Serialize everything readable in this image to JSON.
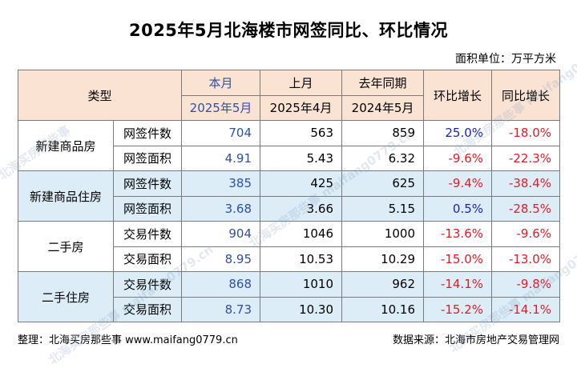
{
  "title": "2025年5月北海楼市网签同比、环比情况",
  "unit": "面积单位：万平方米",
  "header": {
    "type": "类型",
    "this_month": "本月",
    "this_month_date": "2025年5月",
    "last_month": "上月",
    "last_month_date": "2025年4月",
    "last_year": "去年同期",
    "last_year_date": "2024年5月",
    "mom": "环比增长",
    "yoy": "同比增长"
  },
  "groups": [
    {
      "category": "新建商品房",
      "rows": [
        {
          "metric": "网签件数",
          "current": "704",
          "last_month": "563",
          "last_year": "859",
          "mom": "25.0%",
          "yoy": "-18.0%"
        },
        {
          "metric": "网签面积",
          "current": "4.91",
          "last_month": "5.43",
          "last_year": "6.32",
          "mom": "-9.6%",
          "yoy": "-22.3%"
        }
      ]
    },
    {
      "category": "新建商品住房",
      "rows": [
        {
          "metric": "网签件数",
          "current": "385",
          "last_month": "425",
          "last_year": "625",
          "mom": "-9.4%",
          "yoy": "-38.4%"
        },
        {
          "metric": "网签面积",
          "current": "3.68",
          "last_month": "3.66",
          "last_year": "5.15",
          "mom": "0.5%",
          "yoy": "-28.5%"
        }
      ]
    },
    {
      "category": "二手房",
      "rows": [
        {
          "metric": "交易件数",
          "current": "904",
          "last_month": "1046",
          "last_year": "1000",
          "mom": "-13.6%",
          "yoy": "-9.6%"
        },
        {
          "metric": "交易面积",
          "current": "8.95",
          "last_month": "10.53",
          "last_year": "10.29",
          "mom": "-15.0%",
          "yoy": "-13.0%"
        }
      ]
    },
    {
      "category": "二手住房",
      "rows": [
        {
          "metric": "交易件数",
          "current": "868",
          "last_month": "1010",
          "last_year": "962",
          "mom": "-14.1%",
          "yoy": "-9.8%"
        },
        {
          "metric": "交易面积",
          "current": "8.73",
          "last_month": "10.30",
          "last_year": "10.16",
          "mom": "-15.2%",
          "yoy": "-14.1%"
        }
      ]
    }
  ],
  "footer": {
    "compiled_by": "整理：北海买房那些事 www.maifang0779.cn",
    "source": "数据来源：北海市房地产交易管理网"
  },
  "watermark": {
    "text_cn": "北海买房那些事",
    "text_url": "maifang0779.cn"
  },
  "colors": {
    "header_bg": "#fbe3d4",
    "shade_bg": "#dcedf7",
    "current_blue": "#2f4fa6",
    "positive": "#1a1fb0",
    "negative": "#e01b24"
  }
}
